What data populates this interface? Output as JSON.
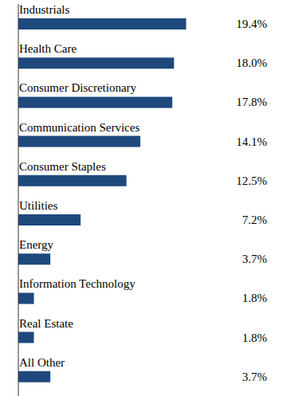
{
  "chart_data": {
    "type": "bar",
    "orientation": "horizontal",
    "categories": [
      "Industrials",
      "Health Care",
      "Consumer Discretionary",
      "Communication Services",
      "Consumer Staples",
      "Utilities",
      "Energy",
      "Information Technology",
      "Real Estate",
      "All Other"
    ],
    "values": [
      19.4,
      18.0,
      17.8,
      14.1,
      12.5,
      7.2,
      3.7,
      1.8,
      1.8,
      3.7
    ],
    "value_labels": [
      "19.4%",
      "18.0%",
      "17.8%",
      "14.1%",
      "12.5%",
      "7.2%",
      "3.7%",
      "1.8%",
      "1.8%",
      "3.7%"
    ],
    "color": "#1f497d",
    "xlim": [
      0,
      20
    ],
    "data_labels": true,
    "tick_labels": false,
    "grid": false
  }
}
